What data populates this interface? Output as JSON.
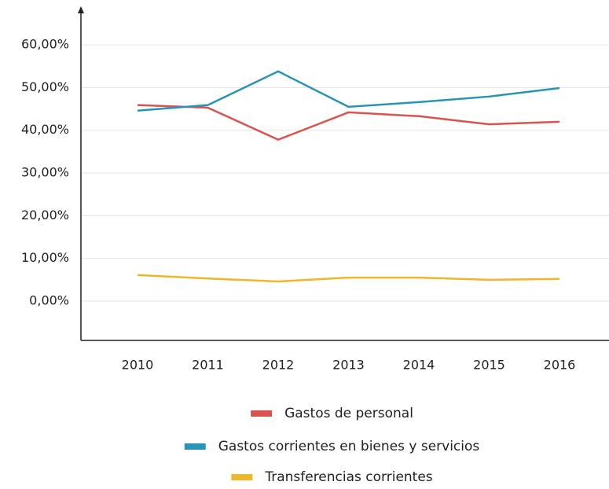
{
  "chart_data": {
    "type": "line",
    "categories": [
      "2010",
      "2011",
      "2012",
      "2013",
      "2014",
      "2015",
      "2016"
    ],
    "series": [
      {
        "name": "Gastos de personal",
        "color": "#d9534f",
        "values": [
          45.9,
          45.3,
          37.8,
          44.2,
          43.3,
          41.4,
          42.0
        ]
      },
      {
        "name": "Gastos corrientes en bienes y servicios",
        "color": "#2a94b4",
        "values": [
          44.6,
          45.9,
          53.8,
          45.5,
          46.6,
          47.9,
          49.9
        ]
      },
      {
        "name": "Transferencias corrientes",
        "color": "#f0b629",
        "values": [
          6.1,
          5.3,
          4.6,
          5.5,
          5.5,
          5.0,
          5.2
        ]
      }
    ],
    "ylim": [
      -9.2,
      68.3
    ],
    "yticks": [
      {
        "value": 0,
        "label": "0,00%"
      },
      {
        "value": 10,
        "label": "10,00%"
      },
      {
        "value": 20,
        "label": "20,00%"
      },
      {
        "value": 30,
        "label": "30,00%"
      },
      {
        "value": 40,
        "label": "40,00%"
      },
      {
        "value": 50,
        "label": "50,00%"
      },
      {
        "value": 60,
        "label": "60,00%"
      }
    ],
    "grid": true,
    "legend": "bottom"
  }
}
